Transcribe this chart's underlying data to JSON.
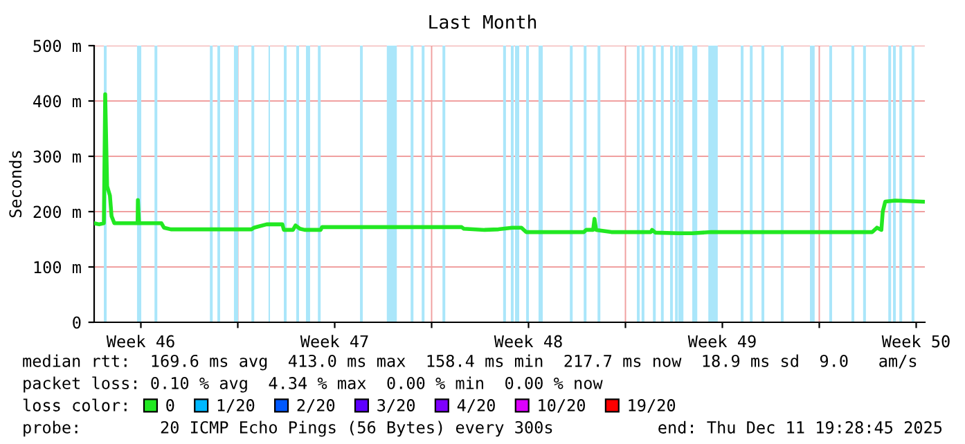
{
  "chart_data": {
    "type": "line",
    "title": "Last Month",
    "ylabel": "Seconds",
    "x": [
      "2025-11-11T19:30",
      "2025-11-11T23:50",
      "2025-11-12T03:55",
      "2025-11-12T05:05",
      "2025-11-12T06:45",
      "2025-11-12T09:10",
      "2025-11-12T10:35",
      "2025-11-12T13:00",
      "2025-11-13T09:10",
      "2025-11-13T09:25",
      "2025-11-13T10:25",
      "2025-11-14T05:50",
      "2025-11-14T08:00",
      "2025-11-14T14:00",
      "2025-11-17T11:50",
      "2025-11-17T14:00",
      "2025-11-18T01:00",
      "2025-11-18T14:40",
      "2025-11-18T15:55",
      "2025-11-18T23:50",
      "2025-11-19T02:00",
      "2025-11-19T05:50",
      "2025-11-19T09:55",
      "2025-11-19T23:50",
      "2025-11-20T01:00",
      "2025-11-25T02:00",
      "2025-11-25T03:55",
      "2025-11-25T21:55",
      "2025-11-26T09:55",
      "2025-11-26T21:55",
      "2025-11-27T05:50",
      "2025-11-27T09:55",
      "2025-11-29T11:50",
      "2025-11-29T14:00",
      "2025-11-29T20:00",
      "2025-11-29T21:10",
      "2025-11-29T22:35",
      "2025-11-30T11:50",
      "2025-12-01T21:55",
      "2025-12-01T23:05",
      "2025-12-02T02:00",
      "2025-12-02T21:55",
      "2025-12-03T09:55",
      "2025-12-04T02:00",
      "2025-12-09T21:55",
      "2025-12-10T02:00",
      "2025-12-10T05:50",
      "2025-12-10T07:00",
      "2025-12-10T09:10",
      "2025-12-10T17:50",
      "2025-12-11T17:50"
    ],
    "series": [
      {
        "name": "0",
        "color": "#22e822",
        "values": [
          179,
          177,
          179,
          412,
          246,
          229,
          192,
          179,
          179,
          221,
          179,
          179,
          171,
          168,
          168,
          171,
          177,
          177,
          167,
          167,
          175,
          169,
          167,
          167,
          172,
          172,
          169,
          167,
          168,
          171,
          171,
          163,
          163,
          167,
          167,
          187,
          167,
          163,
          163,
          167,
          162,
          161,
          161,
          163,
          163,
          171,
          167,
          200,
          218,
          220,
          218
        ]
      },
      {
        "name": "1/20",
        "color": "#00b8ff",
        "values": [
          null,
          null,
          null,
          null,
          null,
          null,
          null,
          null,
          null,
          null,
          null,
          null,
          null,
          null,
          null,
          null,
          null,
          null,
          null,
          null,
          null,
          null,
          null,
          null,
          null,
          null,
          null,
          null,
          null,
          null,
          null,
          null,
          null,
          null,
          null,
          null,
          null,
          null,
          null,
          null,
          null,
          null,
          null,
          null,
          null,
          null,
          null,
          null,
          null,
          null,
          null
        ]
      },
      {
        "name": "2/20",
        "color": "#0059ff",
        "values": [
          null,
          null,
          null,
          null,
          null,
          null,
          null,
          null,
          null,
          null,
          null,
          null,
          null,
          null,
          null,
          null,
          null,
          null,
          null,
          null,
          null,
          null,
          null,
          null,
          null,
          null,
          null,
          null,
          null,
          null,
          null,
          null,
          null,
          null,
          null,
          null,
          null,
          null,
          null,
          null,
          null,
          null,
          null,
          null,
          null,
          null,
          null,
          null,
          null,
          null,
          null
        ]
      },
      {
        "name": "3/20",
        "color": "#5e00ff",
        "values": [
          null,
          null,
          null,
          null,
          null,
          null,
          null,
          null,
          null,
          null,
          null,
          null,
          null,
          null,
          null,
          null,
          null,
          null,
          null,
          null,
          null,
          null,
          null,
          null,
          null,
          null,
          null,
          null,
          null,
          null,
          null,
          null,
          null,
          null,
          null,
          null,
          null,
          null,
          null,
          null,
          null,
          null,
          null,
          null,
          null,
          null,
          null,
          null,
          null,
          null,
          null
        ]
      },
      {
        "name": "4/20",
        "color": "#7e00ff",
        "values": [
          null,
          null,
          null,
          null,
          null,
          null,
          null,
          null,
          null,
          null,
          null,
          null,
          null,
          null,
          null,
          null,
          null,
          null,
          null,
          null,
          null,
          null,
          null,
          null,
          null,
          null,
          null,
          null,
          null,
          null,
          null,
          null,
          null,
          null,
          null,
          null,
          null,
          null,
          null,
          null,
          null,
          null,
          null,
          null,
          null,
          null,
          null,
          null,
          null,
          null,
          null
        ]
      },
      {
        "name": "10/20",
        "color": "#dd00ff",
        "values": [
          null,
          null,
          null,
          null,
          null,
          null,
          null,
          null,
          null,
          null,
          null,
          null,
          null,
          null,
          null,
          null,
          null,
          null,
          null,
          null,
          null,
          null,
          null,
          null,
          null,
          null,
          null,
          null,
          null,
          null,
          null,
          null,
          null,
          null,
          null,
          null,
          null,
          null,
          null,
          null,
          null,
          null,
          null,
          null,
          null,
          null,
          null,
          null,
          null,
          null,
          null
        ]
      },
      {
        "name": "19/20",
        "color": "#ff0000",
        "values": [
          null,
          null,
          null,
          null,
          null,
          null,
          null,
          null,
          null,
          null,
          null,
          null,
          null,
          null,
          null,
          null,
          null,
          null,
          null,
          null,
          null,
          null,
          null,
          null,
          null,
          null,
          null,
          null,
          null,
          null,
          null,
          null,
          null,
          null,
          null,
          null,
          null,
          null,
          null,
          null,
          null,
          null,
          null,
          null,
          null,
          null,
          null,
          null,
          null,
          null,
          null
        ]
      }
    ],
    "legend": "bottom",
    "legend_title": "loss color:",
    "xlim": [
      "2025-11-11T19:30",
      "2025-12-11T19:30"
    ],
    "xticks": [
      {
        "value": "2025-11-13T12:00",
        "label": "Week 46"
      },
      {
        "value": "2025-11-17",
        "label": null
      },
      {
        "value": "2025-11-20T12:00",
        "label": "Week 47"
      },
      {
        "value": "2025-11-24",
        "label": null
      },
      {
        "value": "2025-11-27T12:00",
        "label": "Week 48"
      },
      {
        "value": "2025-12-01",
        "label": null
      },
      {
        "value": "2025-12-04T12:00",
        "label": "Week 49"
      },
      {
        "value": "2025-12-08",
        "label": null
      },
      {
        "value": "2025-12-11T12:00",
        "label": "Week 50"
      }
    ],
    "ylim": [
      0,
      500
    ],
    "yticks": [
      {
        "value": 0,
        "label": "0"
      },
      {
        "value": 100,
        "label": "100 m"
      },
      {
        "value": 200,
        "label": "200 m"
      },
      {
        "value": 300,
        "label": "300 m"
      },
      {
        "value": 400,
        "label": "400 m"
      },
      {
        "value": 500,
        "label": "500 m"
      }
    ],
    "grid": true,
    "bands": [
      {
        "axis": "x",
        "from": "2025-11-12T03:55",
        "to": "2025-11-12T06:20",
        "color": "#aae6fa"
      },
      {
        "axis": "x",
        "from": "2025-11-13T08:40",
        "to": "2025-11-13T12:20",
        "color": "#aae6fa"
      },
      {
        "axis": "x",
        "from": "2025-11-13T23:50",
        "to": "2025-11-14T02:15",
        "color": "#aae6fa"
      },
      {
        "axis": "x",
        "from": "2025-11-15T23:50",
        "to": "2025-11-16T02:15",
        "color": "#aae6fa"
      },
      {
        "axis": "x",
        "from": "2025-11-16T06:20",
        "to": "2025-11-16T08:40",
        "color": "#aae6fa"
      },
      {
        "axis": "x",
        "from": "2025-11-16T20:40",
        "to": "2025-11-17T00:20",
        "color": "#aae6fa"
      },
      {
        "axis": "x",
        "from": "2025-11-17T11:50",
        "to": "2025-11-17T14:15",
        "color": "#aae6fa"
      },
      {
        "axis": "x",
        "from": "2025-11-18T02:40",
        "to": "2025-11-18T03:55",
        "color": "#aae6fa"
      },
      {
        "axis": "x",
        "from": "2025-11-18T15:55",
        "to": "2025-11-18T18:20",
        "color": "#aae6fa"
      },
      {
        "axis": "x",
        "from": "2025-11-19T02:40",
        "to": "2025-11-19T05:05",
        "color": "#aae6fa"
      },
      {
        "axis": "x",
        "from": "2025-11-19T11:05",
        "to": "2025-11-19T14:40",
        "color": "#aae6fa"
      },
      {
        "axis": "x",
        "from": "2025-11-19T21:25",
        "to": "2025-11-19T23:50",
        "color": "#aae6fa"
      },
      {
        "axis": "x",
        "from": "2025-11-21T09:55",
        "to": "2025-11-21T12:20",
        "color": "#aae6fa"
      },
      {
        "axis": "x",
        "from": "2025-11-22T09:10",
        "to": "2025-11-22T17:50",
        "color": "#aae6fa"
      },
      {
        "axis": "x",
        "from": "2025-11-23T05:50",
        "to": "2025-11-23T08:15",
        "color": "#aae6fa"
      },
      {
        "axis": "x",
        "from": "2025-11-23T15:25",
        "to": "2025-11-23T17:50",
        "color": "#aae6fa"
      },
      {
        "axis": "x",
        "from": "2025-11-24T09:25",
        "to": "2025-11-24T11:50",
        "color": "#aae6fa"
      },
      {
        "axis": "x",
        "from": "2025-11-26T14:00",
        "to": "2025-11-26T16:25",
        "color": "#aae6fa"
      },
      {
        "axis": "x",
        "from": "2025-11-26T20:40",
        "to": "2025-11-26T23:05",
        "color": "#aae6fa"
      },
      {
        "axis": "x",
        "from": "2025-11-27T00:20",
        "to": "2025-11-27T03:55",
        "color": "#aae6fa"
      },
      {
        "axis": "x",
        "from": "2025-11-27T09:55",
        "to": "2025-11-27T12:20",
        "color": "#aae6fa"
      },
      {
        "axis": "x",
        "from": "2025-11-27T20:40",
        "to": "2025-11-28T00:20",
        "color": "#aae6fa"
      },
      {
        "axis": "x",
        "from": "2025-11-28T23:50",
        "to": "2025-11-29T02:15",
        "color": "#aae6fa"
      },
      {
        "axis": "x",
        "from": "2025-11-29T11:50",
        "to": "2025-11-29T14:15",
        "color": "#aae6fa"
      },
      {
        "axis": "x",
        "from": "2025-11-29T23:50",
        "to": "2025-11-30T02:15",
        "color": "#aae6fa"
      },
      {
        "axis": "x",
        "from": "2025-12-01T09:55",
        "to": "2025-12-01T12:20",
        "color": "#aae6fa"
      },
      {
        "axis": "x",
        "from": "2025-12-01T14:00",
        "to": "2025-12-01T16:25",
        "color": "#aae6fa"
      },
      {
        "axis": "x",
        "from": "2025-12-01T23:50",
        "to": "2025-12-02T02:15",
        "color": "#aae6fa"
      },
      {
        "axis": "x",
        "from": "2025-12-02T06:45",
        "to": "2025-12-02T09:10",
        "color": "#aae6fa"
      },
      {
        "axis": "x",
        "from": "2025-12-02T14:40",
        "to": "2025-12-02T17:05",
        "color": "#aae6fa"
      },
      {
        "axis": "x",
        "from": "2025-12-02T19:00",
        "to": "2025-12-02T21:25",
        "color": "#aae6fa"
      },
      {
        "axis": "x",
        "from": "2025-12-02T21:55",
        "to": "2025-12-03T02:15",
        "color": "#aae6fa"
      },
      {
        "axis": "x",
        "from": "2025-12-03T09:55",
        "to": "2025-12-03T14:15",
        "color": "#aae6fa"
      },
      {
        "axis": "x",
        "from": "2025-12-03T23:50",
        "to": "2025-12-04T08:00",
        "color": "#aae6fa"
      },
      {
        "axis": "x",
        "from": "2025-12-05T03:55",
        "to": "2025-12-05T06:20",
        "color": "#aae6fa"
      },
      {
        "axis": "x",
        "from": "2025-12-05T11:50",
        "to": "2025-12-05T14:15",
        "color": "#aae6fa"
      },
      {
        "axis": "x",
        "from": "2025-12-05T21:55",
        "to": "2025-12-06T00:20",
        "color": "#aae6fa"
      },
      {
        "axis": "x",
        "from": "2025-12-06T14:40",
        "to": "2025-12-06T17:05",
        "color": "#aae6fa"
      },
      {
        "axis": "x",
        "from": "2025-12-07T15:55",
        "to": "2025-12-07T20:00",
        "color": "#aae6fa"
      },
      {
        "axis": "x",
        "from": "2025-12-08T08:40",
        "to": "2025-12-08T11:05",
        "color": "#aae6fa"
      },
      {
        "axis": "x",
        "from": "2025-12-09T03:55",
        "to": "2025-12-09T06:20",
        "color": "#aae6fa"
      },
      {
        "axis": "x",
        "from": "2025-12-09T14:00",
        "to": "2025-12-09T16:25",
        "color": "#aae6fa"
      },
      {
        "axis": "x",
        "from": "2025-12-10T11:50",
        "to": "2025-12-10T14:15",
        "color": "#aae6fa"
      },
      {
        "axis": "x",
        "from": "2025-12-10T15:55",
        "to": "2025-12-10T18:20",
        "color": "#aae6fa"
      },
      {
        "axis": "x",
        "from": "2025-12-10T21:25",
        "to": "2025-12-10T23:50",
        "color": "#aae6fa"
      },
      {
        "axis": "x",
        "from": "2025-12-11T08:00",
        "to": "2025-12-11T10:25",
        "color": "#aae6fa"
      }
    ],
    "annotations": [
      "median rtt:  169.6 ms avg  413.0 ms max  158.4 ms min  217.7 ms now  18.9 ms sd  9.0   am/s",
      "packet loss: 0.10 % avg  4.34 % max  0.00 % min  0.00 % now",
      "probe:        20 ICMP Echo Pings (56 Bytes) every 300s",
      "end: Thu Dec 11 19:28:45 2025"
    ]
  }
}
